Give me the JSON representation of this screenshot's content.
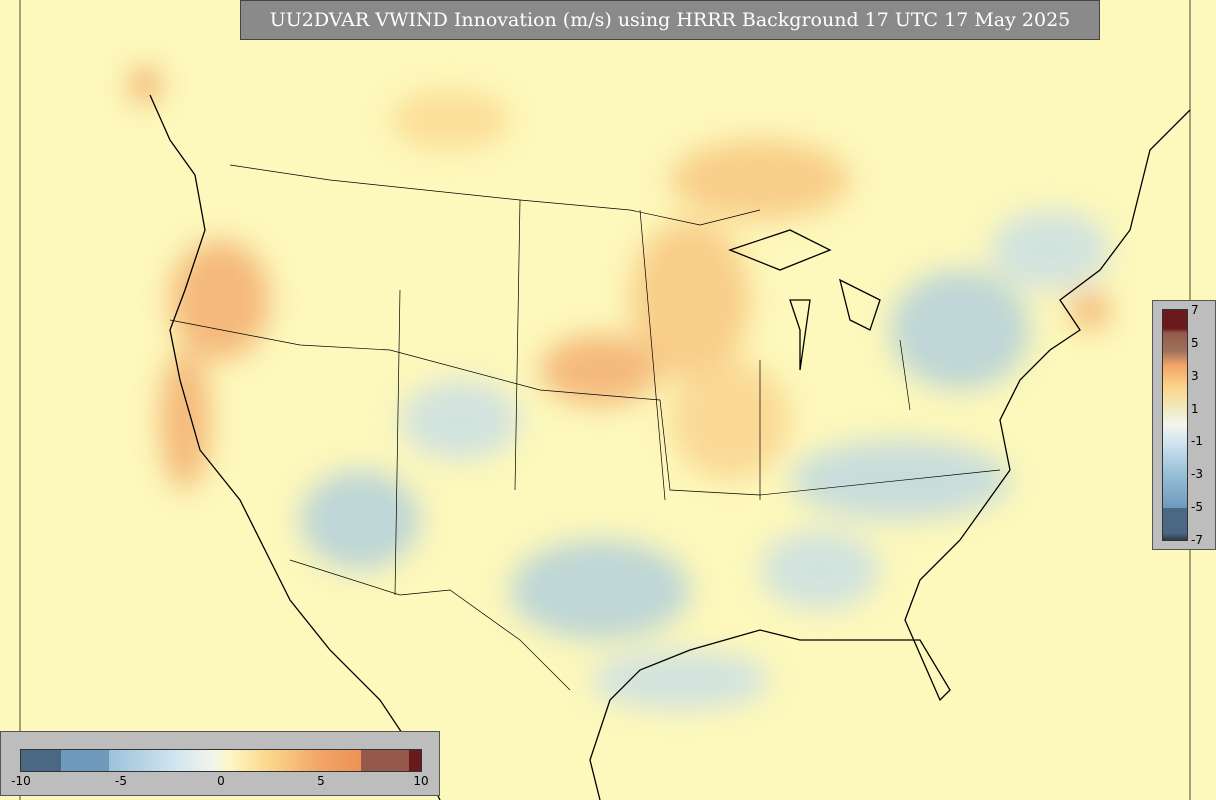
{
  "header": {
    "title": "UU2DVAR VWIND Innovation (m/s) using HRRR Background 17 UTC 17 May 2025"
  },
  "colorbars": {
    "horizontal": {
      "lim": [
        -10,
        10
      ],
      "ticks": [
        -10,
        -5,
        0,
        5,
        10
      ]
    },
    "vertical": {
      "lim": [
        -7,
        7
      ],
      "ticks": [
        7,
        5,
        3,
        1,
        -1,
        -3,
        -5,
        -7
      ]
    }
  }
}
